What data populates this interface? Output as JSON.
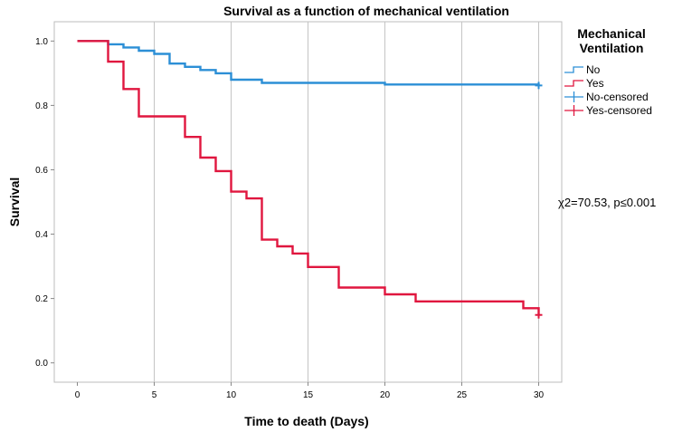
{
  "chart_data": {
    "type": "line",
    "subtype": "kaplan-meier-step",
    "title": "Survival as a function of mechanical ventilation",
    "xlabel": "Time to death (Days)",
    "ylabel": "Survival",
    "xlim": [
      -1.5,
      31.5
    ],
    "ylim": [
      -0.06,
      1.06
    ],
    "x_ticks": [
      0,
      5,
      10,
      15,
      20,
      25,
      30
    ],
    "x_tick_labels": [
      "0",
      "5",
      "10",
      "15",
      "20",
      "25",
      "30"
    ],
    "y_ticks": [
      0.0,
      0.2,
      0.4,
      0.6,
      0.8,
      1.0
    ],
    "y_tick_labels": [
      "0.0",
      "0.2",
      "0.4",
      "0.6",
      "0.8",
      "1.0"
    ],
    "grid": "vertical",
    "legend": {
      "title_lines": [
        "Mechanical",
        "Ventilation"
      ],
      "position": "right",
      "entries": [
        {
          "label": "No",
          "kind": "step",
          "color": "#2c8fd6"
        },
        {
          "label": "Yes",
          "kind": "step",
          "color": "#e0163f"
        },
        {
          "label": "No-censored",
          "kind": "censor",
          "color": "#2c8fd6"
        },
        {
          "label": "Yes-censored",
          "kind": "censor",
          "color": "#e0163f"
        }
      ]
    },
    "annotation": "χ2=70.53, p≤0.001",
    "series": [
      {
        "name": "No",
        "color": "#2c8fd6",
        "x": [
          0,
          2,
          3,
          4,
          5,
          6,
          7,
          8,
          9,
          10,
          12,
          20,
          30
        ],
        "y": [
          1.0,
          0.99,
          0.98,
          0.97,
          0.96,
          0.93,
          0.92,
          0.91,
          0.9,
          0.88,
          0.87,
          0.865,
          0.862
        ],
        "censored": [
          {
            "x": 30,
            "y": 0.862
          }
        ]
      },
      {
        "name": "Yes",
        "color": "#e0163f",
        "x": [
          0,
          2,
          3,
          4,
          7,
          8,
          9,
          10,
          11,
          12,
          13,
          14,
          15,
          17,
          20,
          22,
          29,
          30
        ],
        "y": [
          1.0,
          0.936,
          0.851,
          0.766,
          0.702,
          0.638,
          0.596,
          0.532,
          0.511,
          0.383,
          0.362,
          0.34,
          0.298,
          0.234,
          0.213,
          0.191,
          0.17,
          0.149
        ],
        "censored": [
          {
            "x": 30,
            "y": 0.149
          }
        ]
      }
    ]
  }
}
